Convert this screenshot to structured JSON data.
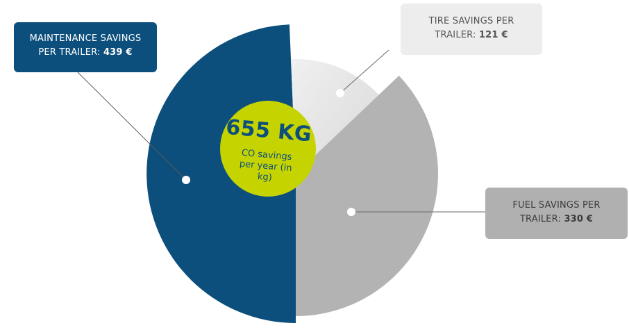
{
  "chart_data": {
    "type": "pie",
    "slices": [
      {
        "label": "MAINTENANCE SAVINGS PER TRAILER",
        "value": 439,
        "display_value": "439 €",
        "color": "#0d4f7c"
      },
      {
        "label": "TIRE SAVINGS PER TRAILER",
        "value": 121,
        "display_value": "121 €",
        "color": "#ececec"
      },
      {
        "label": "FUEL SAVINGS PER TRAILER",
        "value": 330,
        "display_value": "330 €",
        "color": "#b3b3b3"
      }
    ],
    "center": {
      "value": "655 KG",
      "caption": "CO savings per year (in kg)",
      "color": "#c5d300"
    }
  },
  "labels": {
    "maintenance": {
      "line1": "MAINTENANCE SAVINGS",
      "line2_prefix": "PER TRAILER:",
      "amount": "439 €"
    },
    "tire": {
      "line1": "TIRE SAVINGS PER",
      "line2_prefix": "TRAILER:",
      "amount": "121 €"
    },
    "fuel": {
      "line1": "FUEL SAVINGS PER",
      "line2_prefix": "TRAILER:",
      "amount": "330 €"
    }
  }
}
